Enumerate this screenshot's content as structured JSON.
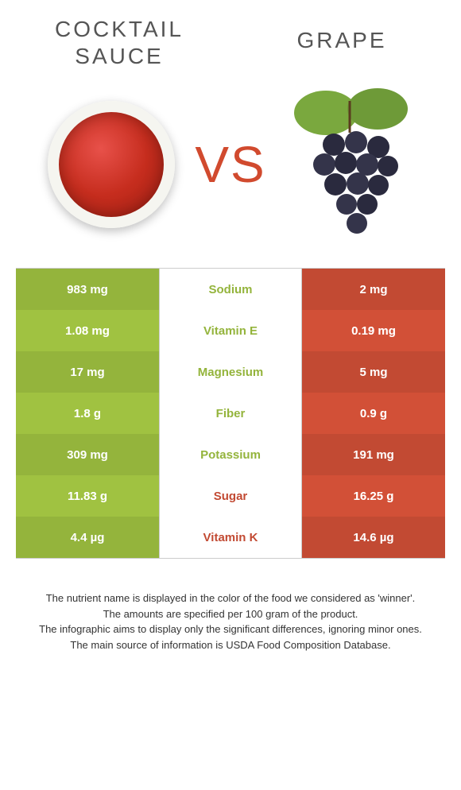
{
  "left": {
    "title": "COCKTAIL SAUCE",
    "color": "#94b43c"
  },
  "right": {
    "title": "GRAPE",
    "color": "#c24a33"
  },
  "vs_text": "VS",
  "vs_color": "#d14a2e",
  "rows": [
    {
      "nutrient": "Sodium",
      "left_val": "983 mg",
      "right_val": "2 mg",
      "winner": "left"
    },
    {
      "nutrient": "Vitamin E",
      "left_val": "1.08 mg",
      "right_val": "0.19 mg",
      "winner": "left"
    },
    {
      "nutrient": "Magnesium",
      "left_val": "17 mg",
      "right_val": "5 mg",
      "winner": "left"
    },
    {
      "nutrient": "Fiber",
      "left_val": "1.8 g",
      "right_val": "0.9 g",
      "winner": "left"
    },
    {
      "nutrient": "Potassium",
      "left_val": "309 mg",
      "right_val": "191 mg",
      "winner": "left"
    },
    {
      "nutrient": "Sugar",
      "left_val": "11.83 g",
      "right_val": "16.25 g",
      "winner": "right"
    },
    {
      "nutrient": "Vitamin K",
      "left_val": "4.4 µg",
      "right_val": "14.6 µg",
      "winner": "right"
    }
  ],
  "footer_lines": [
    "The nutrient name is displayed in the color of the food we considered as 'winner'.",
    "The amounts are specified per 100 gram of the product.",
    "The infographic aims to display only the significant differences, ignoring minor ones.",
    "The main source of information is USDA Food Composition Database."
  ]
}
